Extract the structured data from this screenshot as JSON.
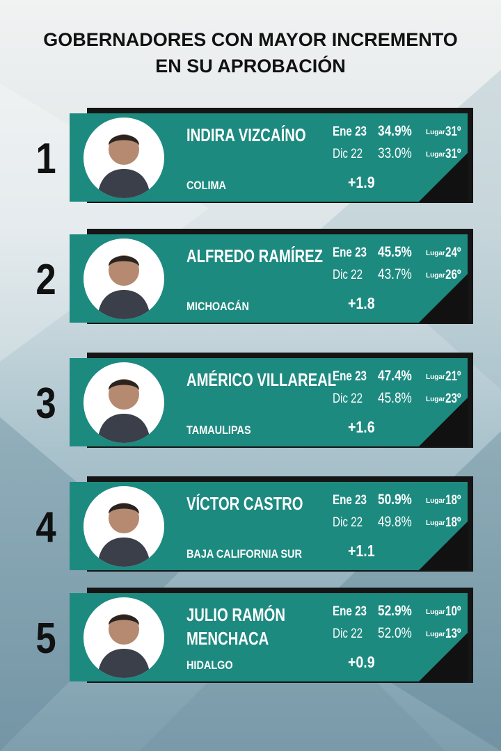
{
  "title": [
    "GOBERNADORES CON MAYOR INCREMENTO",
    "EN SU APROBACIÓN"
  ],
  "items": [
    {
      "rank": "1",
      "name": "INDIRA VIZCAÍNO",
      "state": "COLIMA",
      "current": {
        "period": "Ene 23",
        "approval": "34.9%",
        "place_label": "Lugar",
        "place": "31º"
      },
      "previous": {
        "period": "Dic 22",
        "approval": "33.0%",
        "place_label": "Lugar",
        "place": "31º"
      },
      "change": "+1.9"
    },
    {
      "rank": "2",
      "name": "ALFREDO RAMÍREZ",
      "state": "MICHOACÁN",
      "current": {
        "period": "Ene 23",
        "approval": "45.5%",
        "place_label": "Lugar",
        "place": "24º"
      },
      "previous": {
        "period": "Dic 22",
        "approval": "43.7%",
        "place_label": "Lugar",
        "place": "26º"
      },
      "change": "+1.8"
    },
    {
      "rank": "3",
      "name": "AMÉRICO VILLAREAL",
      "state": "TAMAULIPAS",
      "current": {
        "period": "Ene 23",
        "approval": "47.4%",
        "place_label": "Lugar",
        "place": "21º"
      },
      "previous": {
        "period": "Dic 22",
        "approval": "45.8%",
        "place_label": "Lugar",
        "place": "23º"
      },
      "change": "+1.6"
    },
    {
      "rank": "4",
      "name": "VÍCTOR CASTRO",
      "state": "BAJA CALIFORNIA SUR",
      "current": {
        "period": "Ene 23",
        "approval": "50.9%",
        "place_label": "Lugar",
        "place": "18º"
      },
      "previous": {
        "period": "Dic 22",
        "approval": "49.8%",
        "place_label": "Lugar",
        "place": "18º"
      },
      "change": "+1.1"
    },
    {
      "rank": "5",
      "name": "JULIO RAMÓN MENCHACA",
      "state": "HIDALGO",
      "current": {
        "period": "Ene 23",
        "approval": "52.9%",
        "place_label": "Lugar",
        "place": "10º"
      },
      "previous": {
        "period": "Dic 22",
        "approval": "52.0%",
        "place_label": "Lugar",
        "place": "13º"
      },
      "change": "+0.9"
    }
  ]
}
